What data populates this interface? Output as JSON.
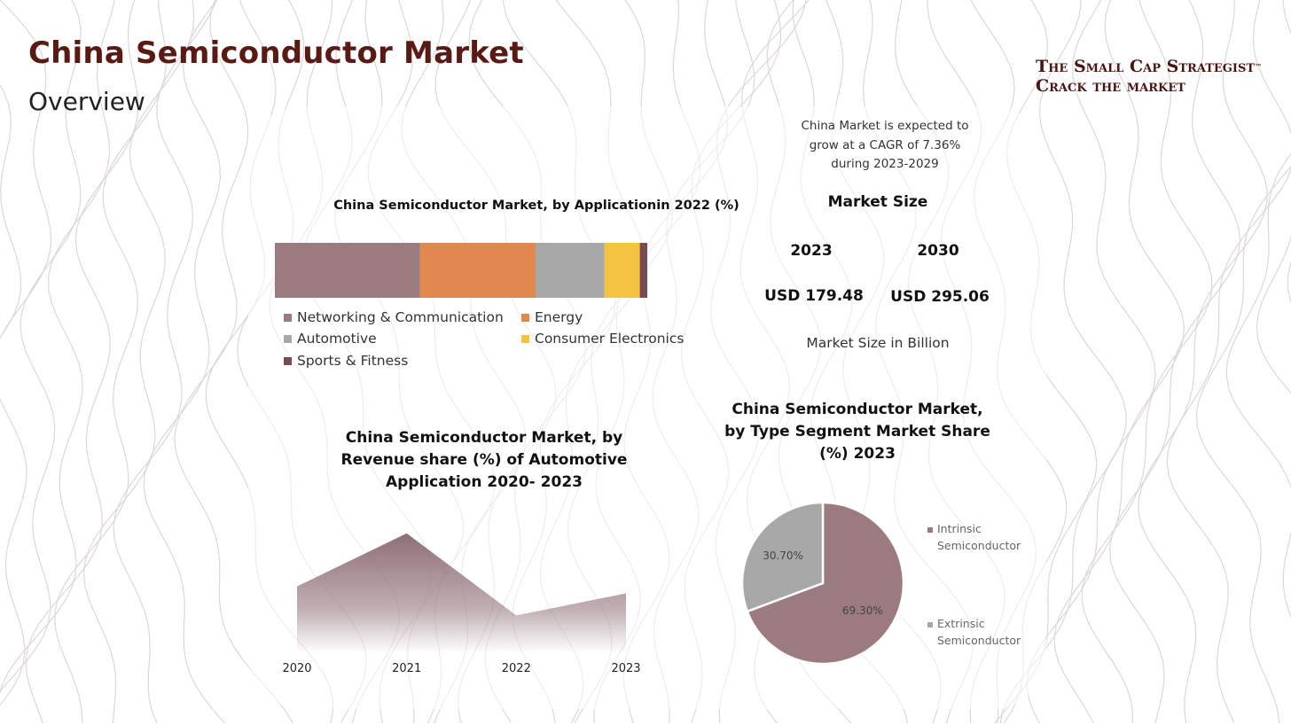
{
  "page": {
    "title": "China Semiconductor Market",
    "subtitle": "Overview"
  },
  "brand": {
    "line1": "The Small Cap Strategist",
    "tm": "™",
    "line2": "Crack the market"
  },
  "market_size": {
    "cagr_line1": "China Market is expected to",
    "cagr_line2": "grow at a CAGR of 7.36%",
    "cagr_line3": "during 2023-2029",
    "title": "Market Size",
    "year_1": "2023",
    "year_2": "2030",
    "value_1": "USD 179.48",
    "value_2": "USD 295.06",
    "unit_note": "Market Size in Billion"
  },
  "colors": {
    "brand_dark": "#5a1a14",
    "networking": "#9b7a80",
    "energy": "#e0884e",
    "automotive": "#a8a8a8",
    "consumer": "#f2c440",
    "sports": "#7a4a52",
    "pie_intrinsic": "#9b7a80",
    "pie_extrinsic": "#a8a8a8",
    "area_fill": "#8f6f76"
  },
  "chart_data": [
    {
      "type": "bar",
      "orientation": "horizontal-stacked",
      "title": "China Semiconductor Market, by Applicationin 2022 (%)",
      "series": [
        {
          "name": "Networking & Communication",
          "values": [
            39
          ]
        },
        {
          "name": "Energy",
          "values": [
            31
          ]
        },
        {
          "name": "Automotive",
          "values": [
            18.5
          ]
        },
        {
          "name": "Consumer Electronics",
          "values": [
            9.5
          ]
        },
        {
          "name": "Sports & Fitness",
          "values": [
            2
          ]
        }
      ],
      "legend_position": "bottom"
    },
    {
      "type": "area",
      "title": "China Semiconductor Market, by Revenue share (%) of Automotive Application 2020- 2023",
      "categories": [
        "2020",
        "2021",
        "2022",
        "2023"
      ],
      "series": [
        {
          "values": [
            6.5,
            11.8,
            3.6,
            5.8
          ]
        }
      ],
      "ylim": [
        0,
        12.4
      ],
      "grid": false
    },
    {
      "type": "pie",
      "title": "China Semiconductor Market, by Type Segment Market Share (%) 2023",
      "labels": [
        "Intrinsic Semiconductor",
        "Extrinsic Semiconductor"
      ],
      "legend_lines": [
        [
          "Intrinsic",
          "Semiconductor"
        ],
        [
          "Extrinsic",
          "Semiconductor"
        ]
      ],
      "values": [
        69.3,
        30.7
      ],
      "data_labels": [
        "69.30%",
        "30.70%"
      ],
      "legend_position": "right"
    }
  ]
}
